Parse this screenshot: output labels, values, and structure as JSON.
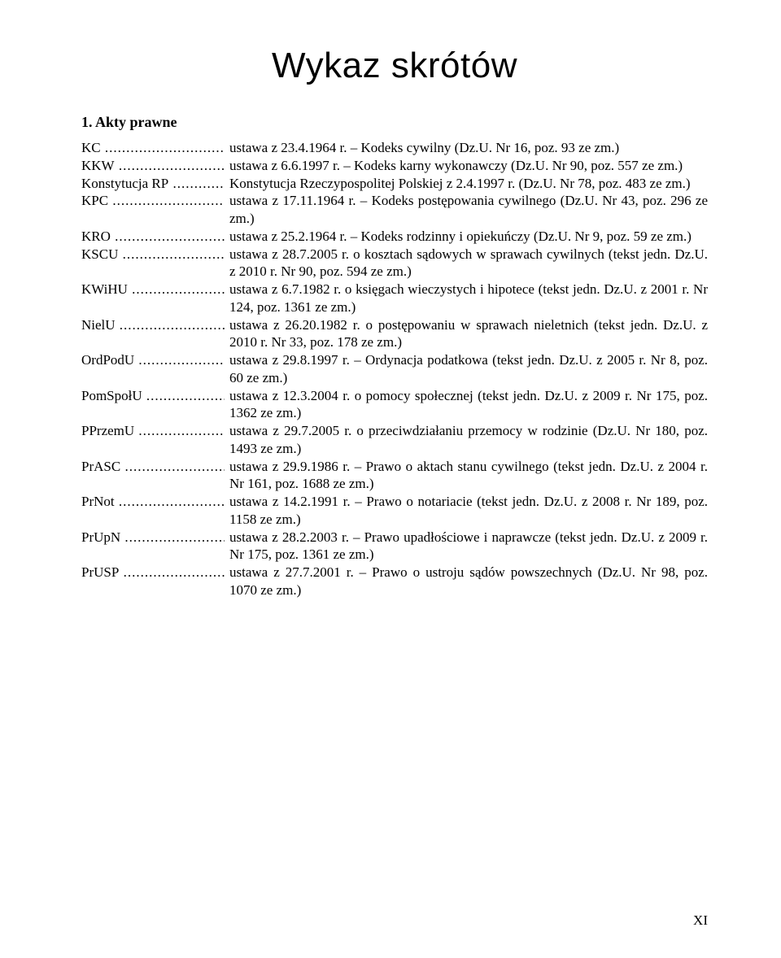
{
  "title": "Wykaz skrótów",
  "section_heading": "1. Akty prawne",
  "page_number": "XI",
  "entries": [
    {
      "abbr": "KC",
      "def": "ustawa z 23.4.1964 r. – Kodeks cywilny (Dz.U. Nr 16, poz. 93 ze zm.)"
    },
    {
      "abbr": "KKW",
      "def": "ustawa z 6.6.1997 r. – Kodeks karny wykonawczy (Dz.U. Nr 90, poz. 557 ze zm.)"
    },
    {
      "abbr": "Konstytucja RP",
      "def": "Konstytucja Rzeczypospolitej Polskiej z 2.4.1997 r. (Dz.U. Nr 78, poz. 483 ze zm.)"
    },
    {
      "abbr": "KPC",
      "def": "ustawa z 17.11.1964 r. – Kodeks postępowania cywilnego (Dz.U. Nr 43, poz. 296 ze zm.)"
    },
    {
      "abbr": "KRO",
      "def": "ustawa z 25.2.1964 r. – Kodeks rodzinny i opiekuńczy (Dz.U. Nr 9, poz. 59 ze zm.)"
    },
    {
      "abbr": "KSCU",
      "def": "ustawa z 28.7.2005 r. o kosztach sądowych w sprawach cywilnych (tekst jedn. Dz.U. z 2010 r. Nr 90, poz. 594 ze zm.)"
    },
    {
      "abbr": "KWiHU",
      "def": "ustawa z 6.7.1982 r. o księgach wieczystych i hipotece (tekst jedn. Dz.U. z 2001 r. Nr 124, poz. 1361 ze zm.)"
    },
    {
      "abbr": "NielU",
      "def": "ustawa z 26.20.1982 r. o postępowaniu w sprawach nieletnich (tekst jedn. Dz.U. z 2010 r. Nr 33, poz. 178 ze zm.)"
    },
    {
      "abbr": "OrdPodU",
      "def": "ustawa z 29.8.1997 r. – Ordynacja podatkowa (tekst jedn. Dz.U. z 2005 r. Nr 8, poz. 60 ze zm.)"
    },
    {
      "abbr": "PomSpołU",
      "def": "ustawa z 12.3.2004 r. o pomocy społecznej (tekst jedn. Dz.U. z 2009 r. Nr 175, poz. 1362 ze zm.)"
    },
    {
      "abbr": "PPrzemU",
      "def": "ustawa z 29.7.2005 r. o przeciwdziałaniu przemocy w rodzinie (Dz.U. Nr 180, poz. 1493 ze zm.)"
    },
    {
      "abbr": "PrASC",
      "def": "ustawa z 29.9.1986 r. – Prawo o aktach stanu cywilnego (tekst jedn. Dz.U. z 2004 r. Nr 161, poz. 1688 ze zm.)"
    },
    {
      "abbr": "PrNot",
      "def": "ustawa z 14.2.1991 r. – Prawo o notariacie (tekst jedn. Dz.U. z 2008 r. Nr 189, poz. 1158 ze zm.)"
    },
    {
      "abbr": "PrUpN",
      "def": "ustawa z 28.2.2003 r. – Prawo upadłościowe i naprawcze (tekst jedn. Dz.U. z 2009 r. Nr 175, poz. 1361 ze zm.)"
    },
    {
      "abbr": "PrUSP",
      "def": "ustawa z 27.7.2001 r. – Prawo o ustroju sądów powszechnych (Dz.U. Nr 98, poz. 1070 ze zm.)"
    }
  ]
}
